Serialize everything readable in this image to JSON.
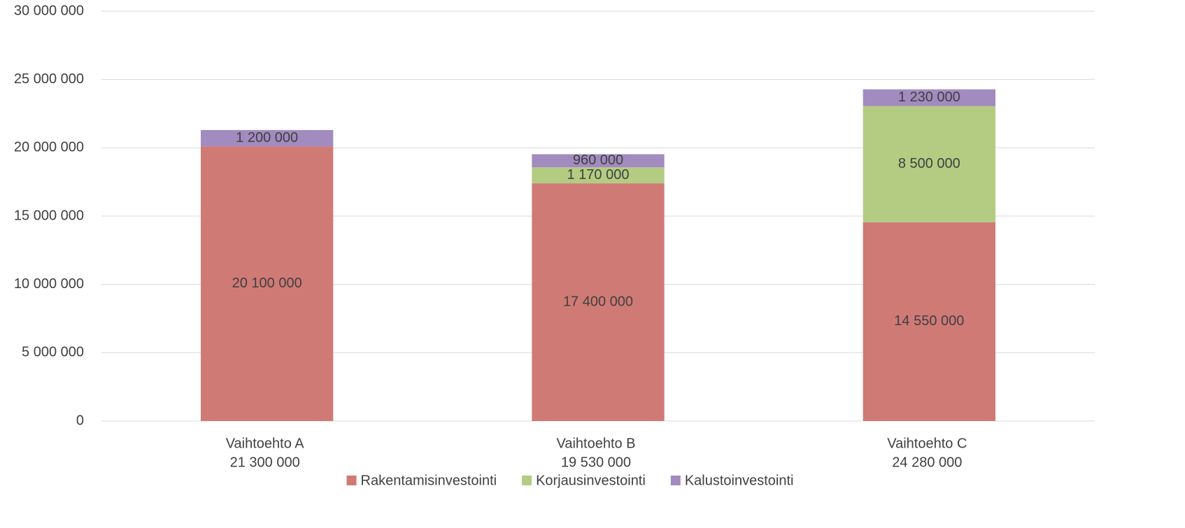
{
  "chart_data": {
    "type": "stacked_bar",
    "categories": [
      [
        "Vaihtoehto A",
        "21 300 000"
      ],
      [
        "Vaihtoehto B",
        "19 530 000"
      ],
      [
        "Vaihtoehto C",
        "24 280 000"
      ]
    ],
    "series": [
      {
        "name": "Rakentamisinvestointi",
        "color": "#d07a76",
        "values": [
          20100000,
          17400000,
          14550000
        ],
        "value_labels": [
          "20 100 000",
          "17 400 000",
          "14 550 000"
        ]
      },
      {
        "name": "Korjausinvestointi",
        "color": "#b3cc82",
        "values": [
          null,
          1170000,
          8500000
        ],
        "value_labels": [
          null,
          "1 170 000",
          "8 500 000"
        ]
      },
      {
        "name": "Kalustoinvestointi",
        "color": "#a28bbf",
        "values": [
          1200000,
          960000,
          1230000
        ],
        "value_labels": [
          "1 200 000",
          "960 000",
          "1 230 000"
        ]
      }
    ],
    "ylim": [
      0,
      30000000
    ],
    "yticks": [
      0,
      {
        "value": 5000000,
        "label": "5 000 000"
      },
      {
        "value": 10000000,
        "label": "10 000 000"
      },
      {
        "value": 15000000,
        "label": "15 000 000"
      },
      {
        "value": 20000000,
        "label": "20 000 000"
      },
      {
        "value": 25000000,
        "label": "25 000 000"
      },
      {
        "value": 30000000,
        "label": "30 000 000"
      }
    ],
    "grid": true,
    "legend": "bottom"
  }
}
